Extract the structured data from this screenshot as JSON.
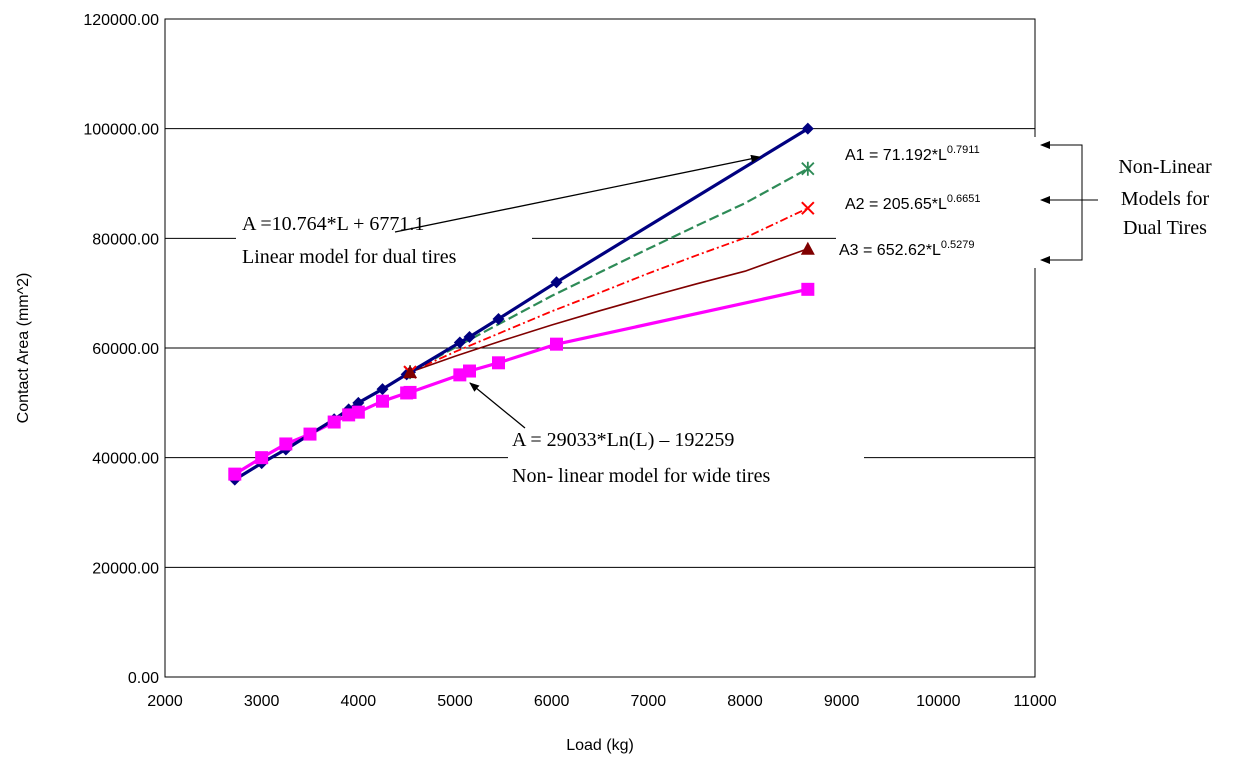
{
  "chart_data": {
    "type": "line",
    "title": "",
    "xlabel": "Load (kg)",
    "ylabel": "Contact Area (mm^2)",
    "xlim": [
      2000,
      11000
    ],
    "ylim": [
      0,
      120000
    ],
    "x_ticks": [
      "2000",
      "3000",
      "4000",
      "5000",
      "6000",
      "7000",
      "8000",
      "9000",
      "10000",
      "11000"
    ],
    "y_ticks": [
      "0.00",
      "20000.00",
      "40000.00",
      "60000.00",
      "80000.00",
      "100000.00",
      "120000.00"
    ],
    "grid": "horizontal",
    "series": [
      {
        "color": "#000080",
        "marker": "diamond",
        "line_style": "solid",
        "points": [
          [
            2722,
            36000
          ],
          [
            3000,
            39000
          ],
          [
            3250,
            41500
          ],
          [
            3750,
            47000
          ],
          [
            3900,
            48800
          ],
          [
            4000,
            50000
          ],
          [
            4250,
            52500
          ],
          [
            4500,
            55200
          ],
          [
            4535,
            55600
          ],
          [
            5050,
            61000
          ],
          [
            5150,
            62000
          ],
          [
            5450,
            65300
          ],
          [
            6050,
            72000
          ],
          [
            8650,
            100000
          ]
        ]
      },
      {
        "color": "#2e8b57",
        "marker": "asterisk",
        "line_style": "dash",
        "points": [
          [
            4535,
            55600
          ],
          [
            5000,
            60100
          ],
          [
            5500,
            64800
          ],
          [
            6000,
            69500
          ],
          [
            6500,
            73800
          ],
          [
            7000,
            78100
          ],
          [
            7500,
            82300
          ],
          [
            8000,
            86400
          ],
          [
            8650,
            92700
          ]
        ]
      },
      {
        "color": "#ff0000",
        "marker": "x",
        "line_style": "dashdot",
        "points": [
          [
            4535,
            55600
          ],
          [
            5000,
            59300
          ],
          [
            5500,
            63000
          ],
          [
            6000,
            66700
          ],
          [
            6500,
            70100
          ],
          [
            7000,
            73600
          ],
          [
            7500,
            76900
          ],
          [
            8000,
            80100
          ],
          [
            8650,
            85500
          ]
        ]
      },
      {
        "color": "#800000",
        "marker": "triangle",
        "line_style": "solid-thin",
        "points": [
          [
            4535,
            55600
          ],
          [
            5000,
            58500
          ],
          [
            5500,
            61400
          ],
          [
            6000,
            64200
          ],
          [
            6500,
            66800
          ],
          [
            7000,
            69300
          ],
          [
            7500,
            71700
          ],
          [
            8000,
            74000
          ],
          [
            8650,
            78100
          ]
        ]
      },
      {
        "color": "#ff00ff",
        "marker": "square",
        "line_style": "solid",
        "points": [
          [
            2722,
            37000
          ],
          [
            3000,
            40000
          ],
          [
            3250,
            42500
          ],
          [
            3500,
            44300
          ],
          [
            3750,
            46500
          ],
          [
            3900,
            47800
          ],
          [
            4000,
            48300
          ],
          [
            4250,
            50300
          ],
          [
            4500,
            51800
          ],
          [
            4535,
            51900
          ],
          [
            5050,
            55100
          ],
          [
            5150,
            55800
          ],
          [
            5450,
            57300
          ],
          [
            6050,
            60700
          ],
          [
            8650,
            70700
          ]
        ]
      }
    ],
    "annotations": {
      "linear_eq": "A =10.764*L + 6771.1",
      "linear_desc": "Linear model for dual tires",
      "wide_eq": "A = 29033*Ln(L) – 192259",
      "wide_desc": "Non- linear model for wide tires",
      "a1_base": "A1 = 71.192*L",
      "a1_exp": "0.7911",
      "a2_base": "A2 = 205.65*L",
      "a2_exp": "0.6651",
      "a3_base": "A3 = 652.62*L",
      "a3_exp": "0.5279",
      "group_line1": "Non-Linear",
      "group_line2": "Models for",
      "group_line3": "Dual Tires"
    }
  }
}
